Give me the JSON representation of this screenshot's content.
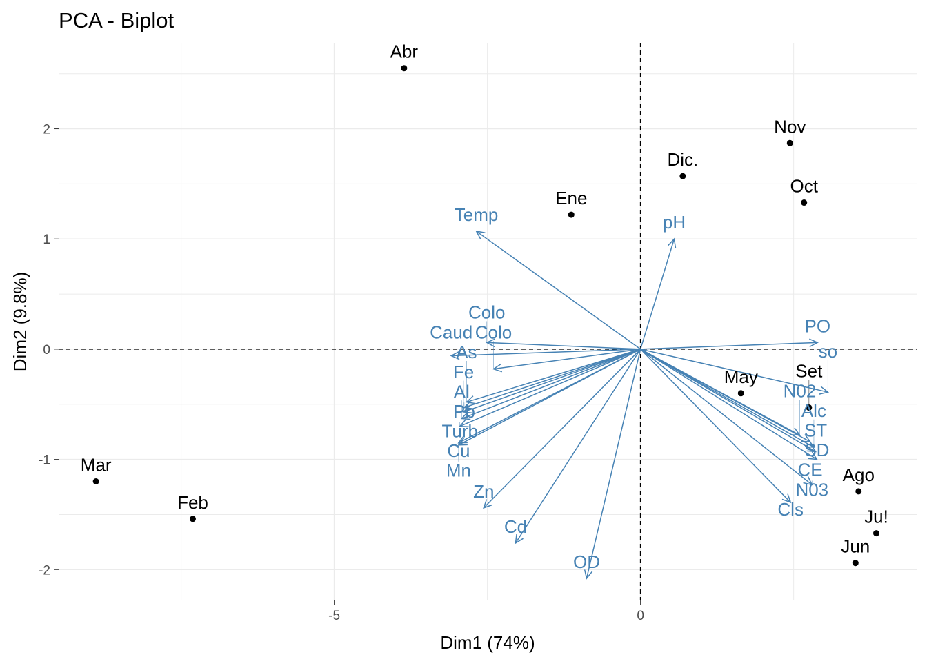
{
  "chart_data": {
    "type": "scatter",
    "title": "PCA - Biplot",
    "xlabel": "Dim1 (74%)",
    "ylabel": "Dim2 (9.8%)",
    "xlim": [
      -9.5,
      4.52
    ],
    "ylim": [
      -2.28,
      2.78
    ],
    "x_ticks": [
      -5,
      0
    ],
    "y_ticks": [
      -2,
      -1,
      0,
      1,
      2
    ],
    "grid": true,
    "colors": {
      "points": "#000000",
      "variables": "#4682B4",
      "grid": "#EBEBEB"
    },
    "individuals": [
      {
        "label": "Abr",
        "x": -3.86,
        "y": 2.55
      },
      {
        "label": "Nov",
        "x": 2.44,
        "y": 1.87
      },
      {
        "label": "Dic.",
        "x": 0.69,
        "y": 1.57
      },
      {
        "label": "Oct",
        "x": 2.67,
        "y": 1.33
      },
      {
        "label": "Ene",
        "x": -1.13,
        "y": 1.22
      },
      {
        "label": "May",
        "x": 1.64,
        "y": -0.4
      },
      {
        "label": "Set",
        "x": 2.75,
        "y": -0.53
      },
      {
        "label": "Mar",
        "x": -8.89,
        "y": -1.2
      },
      {
        "label": "Feb",
        "x": -7.31,
        "y": -1.54
      },
      {
        "label": "Ago",
        "x": 3.56,
        "y": -1.29
      },
      {
        "label": "Ju!",
        "x": 3.85,
        "y": -1.67
      },
      {
        "label": "Jun",
        "x": 3.51,
        "y": -1.94
      }
    ],
    "variables": [
      {
        "label": "Temp",
        "x": -2.68,
        "y": 1.07
      },
      {
        "label": "pH",
        "x": 0.55,
        "y": 1.0
      },
      {
        "label": "PO",
        "x": 2.89,
        "y": 0.06
      },
      {
        "label": "so",
        "x": 3.06,
        "y": -0.39
      },
      {
        "label": "Colo",
        "x": -2.51,
        "y": 0.06
      },
      {
        "label": "Caud",
        "x": -3.09,
        "y": -0.06
      },
      {
        "label": "Colo",
        "x": -2.4,
        "y": -0.18
      },
      {
        "label": "As",
        "x": -2.84,
        "y": -0.48
      },
      {
        "label": "Pb",
        "x": -2.88,
        "y": -0.53
      },
      {
        "label": "Fe",
        "x": -2.89,
        "y": -0.57
      },
      {
        "label": "Al",
        "x": -2.92,
        "y": -0.63
      },
      {
        "label": "Turb",
        "x": -2.95,
        "y": -0.7
      },
      {
        "label": "Mn",
        "x": -2.97,
        "y": -0.85
      },
      {
        "label": "Cu",
        "x": -2.97,
        "y": -0.87
      },
      {
        "label": "Zn",
        "x": -2.56,
        "y": -1.44
      },
      {
        "label": "Cd",
        "x": -2.04,
        "y": -1.76
      },
      {
        "label": "OD",
        "x": -0.88,
        "y": -2.08
      },
      {
        "label": "N02",
        "x": 2.6,
        "y": -0.78
      },
      {
        "label": "CE",
        "x": 2.77,
        "y": -0.84
      },
      {
        "label": "Alc",
        "x": 2.83,
        "y": -0.89
      },
      {
        "label": "ST",
        "x": 2.86,
        "y": -0.93
      },
      {
        "label": "SD",
        "x": 2.88,
        "y": -1.0
      },
      {
        "label": "N03",
        "x": 2.8,
        "y": -1.23
      },
      {
        "label": "Cls",
        "x": 2.45,
        "y": -1.39
      }
    ]
  }
}
